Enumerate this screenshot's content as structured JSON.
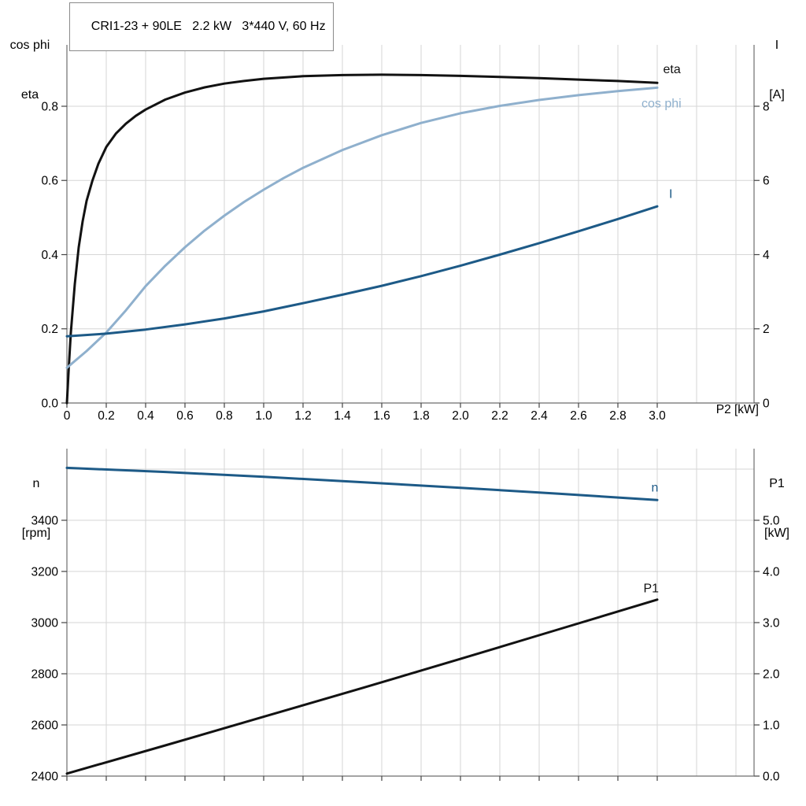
{
  "title": "CRI1-23 + 90LE   2.2 kW   3*440 V, 60 Hz",
  "colors": {
    "eta": "#121212",
    "p1": "#121212",
    "cos_phi": "#8fb0cd",
    "current": "#1d5a87",
    "n": "#1d5a87",
    "grid": "#d6d6d6",
    "axis": "#6e6e6e",
    "tick": "#444444",
    "text": "#000000",
    "title_border": "#8a8a8a"
  },
  "axis_corner_labels": {
    "top_left": [
      "cos phi",
      "eta"
    ],
    "top_right": [
      "I",
      "[A]"
    ],
    "bottom_left": [
      "n",
      "[rpm]"
    ],
    "bottom_right": [
      "P1",
      "[kW]"
    ],
    "x_axis": "P2 [kW]"
  },
  "chart_data": [
    {
      "type": "line",
      "title": "CRI1-23 + 90LE   2.2 kW   3*440 V, 60 Hz",
      "xlabel": "P2 [kW]",
      "ylabel_left": "cos phi / eta",
      "ylabel_right": "I [A]",
      "x_range": [
        0,
        3.492
      ],
      "y_left_range": [
        0,
        0.9655
      ],
      "y_right_range": [
        0,
        9.655
      ],
      "grid_on": true,
      "x_ticks": [
        {
          "v": 0,
          "t": "0"
        },
        {
          "v": 0.2,
          "t": "0.2"
        },
        {
          "v": 0.4,
          "t": "0.4"
        },
        {
          "v": 0.6,
          "t": "0.6"
        },
        {
          "v": 0.8,
          "t": "0.8"
        },
        {
          "v": 1.0,
          "t": "1.0"
        },
        {
          "v": 1.2,
          "t": "1.2"
        },
        {
          "v": 1.4,
          "t": "1.4"
        },
        {
          "v": 1.6,
          "t": "1.6"
        },
        {
          "v": 1.8,
          "t": "1.8"
        },
        {
          "v": 2.0,
          "t": "2.0"
        },
        {
          "v": 2.2,
          "t": "2.2"
        },
        {
          "v": 2.4,
          "t": "2.4"
        },
        {
          "v": 2.6,
          "t": "2.6"
        },
        {
          "v": 2.8,
          "t": "2.8"
        },
        {
          "v": 3.0,
          "t": "3.0"
        }
      ],
      "y_left_ticks": [
        {
          "v": 0,
          "t": "0.0"
        },
        {
          "v": 0.2,
          "t": "0.2"
        },
        {
          "v": 0.4,
          "t": "0.4"
        },
        {
          "v": 0.6,
          "t": "0.6"
        },
        {
          "v": 0.8,
          "t": "0.8"
        }
      ],
      "y_right_ticks": [
        {
          "v": 0,
          "t": "0"
        },
        {
          "v": 2,
          "t": "2"
        },
        {
          "v": 4,
          "t": "4"
        },
        {
          "v": 6,
          "t": "6"
        },
        {
          "v": 8,
          "t": "8"
        }
      ],
      "grid_x": [
        0.2,
        0.4,
        0.6,
        0.8,
        1.0,
        1.2,
        1.4,
        1.6,
        1.8,
        2.0,
        2.2,
        2.4,
        2.6,
        2.8,
        3.0,
        3.2,
        3.4
      ],
      "grid_y": [
        0.2,
        0.4,
        0.6,
        0.8
      ],
      "series": [
        {
          "name": "eta",
          "axis": "left",
          "color_key": "eta",
          "label": {
            "text": "eta",
            "x": 3.03,
            "y": 0.9
          },
          "points": [
            [
              0,
              0
            ],
            [
              0.01,
              0.1
            ],
            [
              0.02,
              0.19
            ],
            [
              0.04,
              0.32
            ],
            [
              0.06,
              0.42
            ],
            [
              0.08,
              0.49
            ],
            [
              0.1,
              0.545
            ],
            [
              0.13,
              0.6
            ],
            [
              0.16,
              0.645
            ],
            [
              0.2,
              0.69
            ],
            [
              0.25,
              0.727
            ],
            [
              0.3,
              0.753
            ],
            [
              0.35,
              0.774
            ],
            [
              0.4,
              0.791
            ],
            [
              0.5,
              0.818
            ],
            [
              0.6,
              0.837
            ],
            [
              0.7,
              0.851
            ],
            [
              0.8,
              0.861
            ],
            [
              0.9,
              0.868
            ],
            [
              1.0,
              0.874
            ],
            [
              1.2,
              0.881
            ],
            [
              1.4,
              0.884
            ],
            [
              1.6,
              0.885
            ],
            [
              1.8,
              0.884
            ],
            [
              2.0,
              0.882
            ],
            [
              2.2,
              0.879
            ],
            [
              2.4,
              0.876
            ],
            [
              2.6,
              0.872
            ],
            [
              2.8,
              0.868
            ],
            [
              3.0,
              0.863
            ]
          ]
        },
        {
          "name": "cos phi",
          "axis": "left",
          "color_key": "cos_phi",
          "label": {
            "text": "cos phi",
            "x": 2.92,
            "y": 0.807
          },
          "points": [
            [
              0,
              0.095
            ],
            [
              0.1,
              0.14
            ],
            [
              0.2,
              0.19
            ],
            [
              0.3,
              0.25
            ],
            [
              0.4,
              0.315
            ],
            [
              0.5,
              0.37
            ],
            [
              0.6,
              0.42
            ],
            [
              0.7,
              0.465
            ],
            [
              0.8,
              0.505
            ],
            [
              0.9,
              0.542
            ],
            [
              1.0,
              0.575
            ],
            [
              1.1,
              0.606
            ],
            [
              1.2,
              0.634
            ],
            [
              1.4,
              0.682
            ],
            [
              1.6,
              0.722
            ],
            [
              1.8,
              0.755
            ],
            [
              2.0,
              0.781
            ],
            [
              2.2,
              0.801
            ],
            [
              2.4,
              0.817
            ],
            [
              2.6,
              0.83
            ],
            [
              2.8,
              0.841
            ],
            [
              3.0,
              0.85
            ]
          ]
        },
        {
          "name": "I",
          "axis": "right",
          "color_key": "current",
          "label": {
            "text": "I",
            "x": 3.06,
            "y": 5.63
          },
          "points": [
            [
              0,
              1.8
            ],
            [
              0.2,
              1.87
            ],
            [
              0.4,
              1.98
            ],
            [
              0.6,
              2.12
            ],
            [
              0.8,
              2.28
            ],
            [
              1.0,
              2.47
            ],
            [
              1.2,
              2.69
            ],
            [
              1.4,
              2.92
            ],
            [
              1.6,
              3.16
            ],
            [
              1.8,
              3.42
            ],
            [
              2.0,
              3.7
            ],
            [
              2.2,
              4.0
            ],
            [
              2.4,
              4.31
            ],
            [
              2.6,
              4.63
            ],
            [
              2.8,
              4.96
            ],
            [
              3.0,
              5.3
            ]
          ]
        }
      ]
    },
    {
      "type": "line",
      "title": "",
      "xlabel": "",
      "ylabel_left": "n [rpm]",
      "ylabel_right": "P1 [kW]",
      "x_range": [
        0,
        3.492
      ],
      "y_left_range": [
        2400,
        3680
      ],
      "y_right_range": [
        0,
        6.4
      ],
      "grid_on": true,
      "x_ticks": [
        {
          "v": 0,
          "t": ""
        },
        {
          "v": 0.2,
          "t": ""
        },
        {
          "v": 0.4,
          "t": ""
        },
        {
          "v": 0.6,
          "t": ""
        },
        {
          "v": 0.8,
          "t": ""
        },
        {
          "v": 1.0,
          "t": ""
        },
        {
          "v": 1.2,
          "t": ""
        },
        {
          "v": 1.4,
          "t": ""
        },
        {
          "v": 1.6,
          "t": ""
        },
        {
          "v": 1.8,
          "t": ""
        },
        {
          "v": 2.0,
          "t": ""
        },
        {
          "v": 2.2,
          "t": ""
        },
        {
          "v": 2.4,
          "t": ""
        },
        {
          "v": 2.6,
          "t": ""
        },
        {
          "v": 2.8,
          "t": ""
        },
        {
          "v": 3.0,
          "t": ""
        }
      ],
      "y_left_ticks": [
        {
          "v": 2400,
          "t": "2400"
        },
        {
          "v": 2600,
          "t": "2600"
        },
        {
          "v": 2800,
          "t": "2800"
        },
        {
          "v": 3000,
          "t": "3000"
        },
        {
          "v": 3200,
          "t": "3200"
        },
        {
          "v": 3400,
          "t": "3400"
        }
      ],
      "y_right_ticks": [
        {
          "v": 0,
          "t": "0.0"
        },
        {
          "v": 1,
          "t": "1.0"
        },
        {
          "v": 2,
          "t": "2.0"
        },
        {
          "v": 3,
          "t": "3.0"
        },
        {
          "v": 4,
          "t": "4.0"
        },
        {
          "v": 5,
          "t": "5.0"
        }
      ],
      "grid_x": [
        0.2,
        0.4,
        0.6,
        0.8,
        1.0,
        1.2,
        1.4,
        1.6,
        1.8,
        2.0,
        2.2,
        2.4,
        2.6,
        2.8,
        3.0,
        3.2,
        3.4
      ],
      "grid_y": [
        2600,
        2800,
        3000,
        3200,
        3400,
        3600
      ],
      "series": [
        {
          "name": "n",
          "axis": "left",
          "color_key": "n",
          "label": {
            "text": "n",
            "x": 2.97,
            "y": 3527
          },
          "points": [
            [
              0,
              3605
            ],
            [
              0.5,
              3589
            ],
            [
              1.0,
              3570
            ],
            [
              1.5,
              3549
            ],
            [
              2.0,
              3527
            ],
            [
              2.5,
              3504
            ],
            [
              3.0,
              3479
            ]
          ]
        },
        {
          "name": "P1",
          "axis": "right",
          "color_key": "p1",
          "label": {
            "text": "P1",
            "x": 2.93,
            "y": 3.67
          },
          "points": [
            [
              0,
              0.05
            ],
            [
              0.5,
              0.6
            ],
            [
              1.0,
              1.16
            ],
            [
              1.5,
              1.72
            ],
            [
              2.0,
              2.29
            ],
            [
              2.5,
              2.87
            ],
            [
              3.0,
              3.45
            ]
          ]
        }
      ]
    }
  ]
}
